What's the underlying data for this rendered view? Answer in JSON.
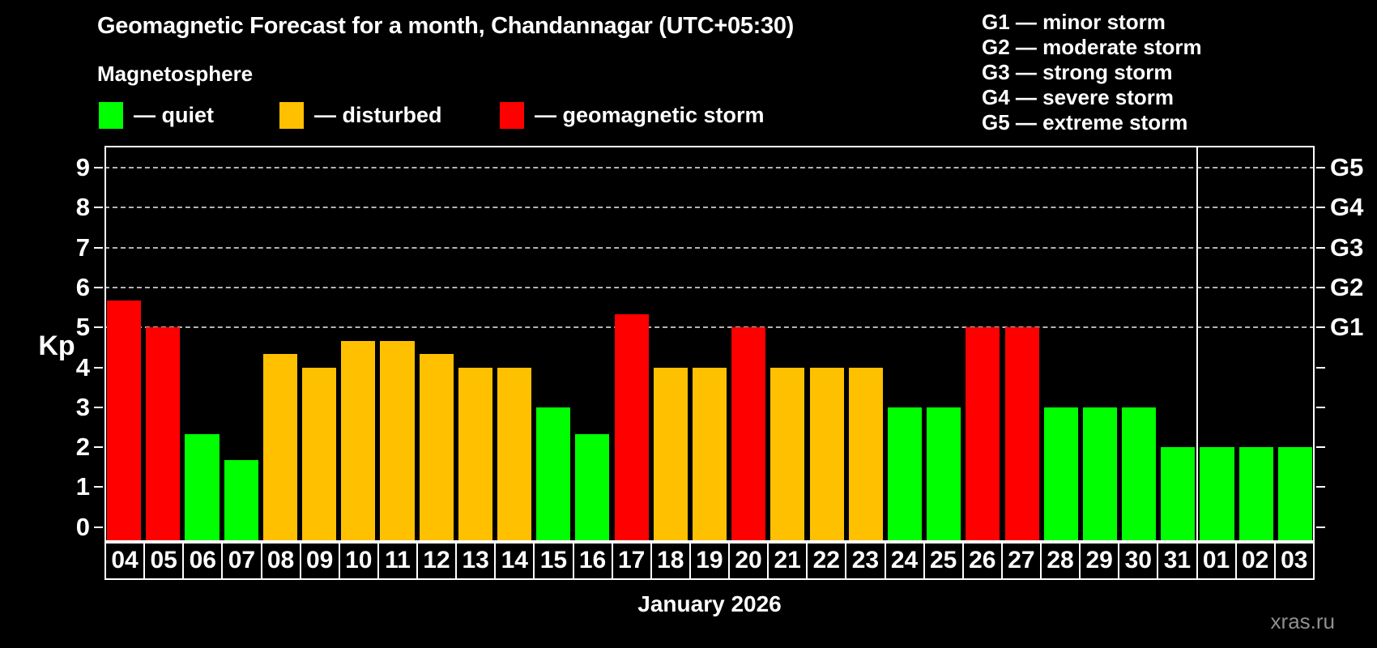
{
  "title": "Geomagnetic Forecast for a month, Chandannagar (UTC+05:30)",
  "subtitle": "Magnetosphere",
  "legend": {
    "quiet": "— quiet",
    "disturbed": "— disturbed",
    "storm": "— geomagnetic storm"
  },
  "storm_scale": [
    "G1 — minor storm",
    "G2 — moderate storm",
    "G3 — strong storm",
    "G4 — severe storm",
    "G5 — extreme storm"
  ],
  "axis": {
    "y_label": "Kp",
    "y_ticks": [
      0,
      1,
      2,
      3,
      4,
      5,
      6,
      7,
      8,
      9
    ],
    "right_labels": [
      "G1",
      "G2",
      "G3",
      "G4",
      "G5"
    ],
    "x_label": "January 2026"
  },
  "watermark": "xras.ru",
  "colors": {
    "quiet": "#00ff00",
    "disturbed": "#ffc000",
    "storm": "#ff0000",
    "background": "#000000",
    "grid": "#b4b4b4"
  },
  "chart_data": {
    "type": "bar",
    "title": "Geomagnetic Forecast for a month, Chandannagar (UTC+05:30)",
    "xlabel": "January 2026",
    "ylabel": "Kp",
    "ylim": [
      0,
      9
    ],
    "grid_levels": [
      5,
      6,
      7,
      8,
      9
    ],
    "legend_position": "top",
    "categories": [
      "04",
      "05",
      "06",
      "07",
      "08",
      "09",
      "10",
      "11",
      "12",
      "13",
      "14",
      "15",
      "16",
      "17",
      "18",
      "19",
      "20",
      "21",
      "22",
      "23",
      "24",
      "25",
      "26",
      "27",
      "28",
      "29",
      "30",
      "31",
      "01",
      "02",
      "03"
    ],
    "values": [
      5.67,
      5.0,
      2.33,
      1.67,
      4.33,
      4.0,
      4.67,
      4.67,
      4.33,
      4.0,
      4.0,
      3.0,
      2.33,
      5.33,
      4.0,
      4.0,
      5.0,
      4.0,
      4.0,
      4.0,
      3.0,
      3.0,
      5.0,
      5.0,
      3.0,
      3.0,
      3.0,
      2.0,
      2.0,
      2.0,
      2.0
    ],
    "states": [
      "storm",
      "storm",
      "quiet",
      "quiet",
      "disturbed",
      "disturbed",
      "disturbed",
      "disturbed",
      "disturbed",
      "disturbed",
      "disturbed",
      "quiet",
      "quiet",
      "storm",
      "disturbed",
      "disturbed",
      "storm",
      "disturbed",
      "disturbed",
      "disturbed",
      "quiet",
      "quiet",
      "storm",
      "storm",
      "quiet",
      "quiet",
      "quiet",
      "quiet",
      "quiet",
      "quiet",
      "quiet"
    ],
    "separator_after": 28
  }
}
